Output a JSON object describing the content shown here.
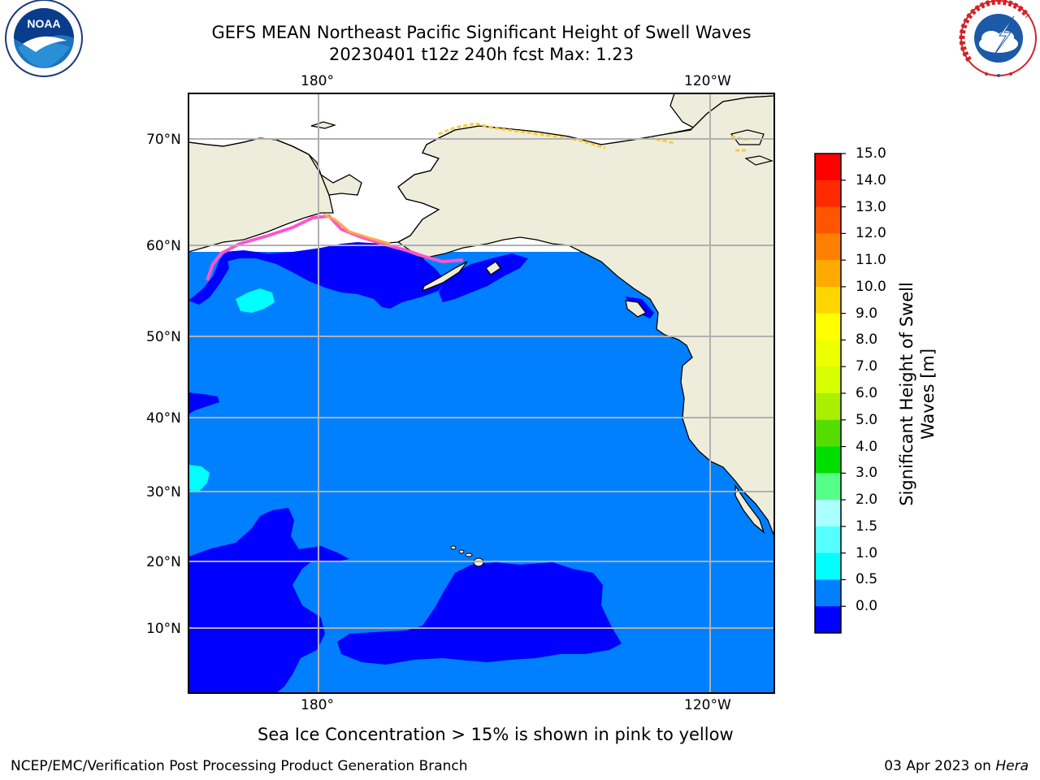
{
  "title": {
    "line1": "GEFS MEAN Northeast Pacific Significant Height of Swell Waves",
    "line2": "20230401 t12z 240h fcst   Max: 1.23"
  },
  "axes": {
    "top_lon_labels": [
      "180°",
      "120°W"
    ],
    "bottom_lon_labels": [
      "180°",
      "120°W"
    ],
    "lat_labels": [
      "70°N",
      "60°N",
      "50°N",
      "40°N",
      "30°N",
      "20°N",
      "10°N"
    ]
  },
  "colorbar": {
    "label_line1": "Significant Height of Swell",
    "label_line2": "Waves [m]",
    "ticks": [
      "15.0",
      "14.0",
      "13.0",
      "12.0",
      "11.0",
      "10.0",
      "9.0",
      "8.0",
      "7.0",
      "6.0",
      "5.0",
      "4.0",
      "3.0",
      "2.0",
      "1.5",
      "1.0",
      "0.5",
      "0.0"
    ],
    "colors_top_to_bottom": [
      "#ff0000",
      "#ff2a00",
      "#ff5500",
      "#ff8000",
      "#ffaa00",
      "#ffd500",
      "#ffff00",
      "#eeff00",
      "#d5ff00",
      "#aaee00",
      "#55dd00",
      "#00dd00",
      "#55ff88",
      "#aaffff",
      "#55ffff",
      "#00ffff",
      "#0080ff",
      "#0000ff"
    ]
  },
  "caption": "Sea Ice Concentration > 15% is shown in pink to yellow",
  "footer": {
    "left": "NCEP/EMC/Verification Post Processing Product Generation Branch",
    "right_date": "03 Apr 2023 on",
    "right_machine": "Hera"
  },
  "logos": {
    "noaa_text": "NOAA",
    "nws_text": "NATIONAL WEATHER SERVICE"
  },
  "colors": {
    "ocean": "#0080ff",
    "low_swell": "#0000ff",
    "land": "#eeeddc",
    "grid": "#b0b0b0"
  }
}
